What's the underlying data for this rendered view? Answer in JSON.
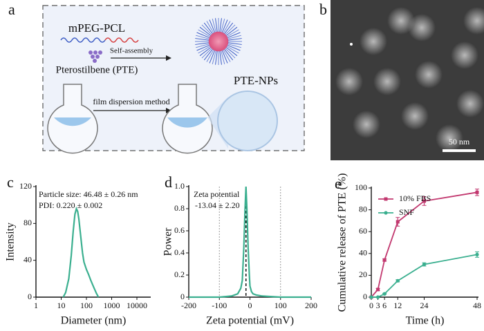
{
  "schematic": {
    "panel_label": "a",
    "polymer": "mPEG-PCL",
    "process": "Self-assembly",
    "drug": "Pterostilbene (PTE)",
    "method": "film dispersion method",
    "product": "PTE-NPs"
  },
  "image": {
    "panel_label": "b",
    "scale_bar": "50 nm"
  },
  "chart_data": [
    {
      "type": "line",
      "panel_label": "c",
      "xlabel": "Diameter (nm)",
      "ylabel": "Intensity",
      "annotations": [
        "Particle size: 46.48 ± 0.26 nm",
        "PDI: 0.220 ± 0.002"
      ],
      "xlog": true,
      "x": [
        12,
        15,
        20,
        25,
        30,
        35,
        40,
        45,
        50,
        60,
        70,
        80,
        100,
        120,
        150,
        200,
        250,
        300
      ],
      "values": [
        0,
        5,
        20,
        45,
        72,
        90,
        96,
        93,
        85,
        65,
        48,
        38,
        30,
        25,
        18,
        10,
        4,
        0
      ],
      "color": "#3aaf8f",
      "xlim": [
        1,
        10000
      ],
      "xticks": [
        1,
        10,
        100,
        1000,
        10000
      ],
      "ylim": [
        0,
        120
      ],
      "yticks": [
        0,
        40,
        80,
        120
      ]
    },
    {
      "type": "line",
      "panel_label": "d",
      "xlabel": "Zeta potential (mV)",
      "ylabel": "Power",
      "annotations": [
        "Zeta potential",
        "-13.04 ± 2.20"
      ],
      "x": [
        -200,
        -100,
        -60,
        -40,
        -30,
        -25,
        -20,
        -16,
        -13,
        -10,
        -6,
        -2,
        0,
        5,
        10,
        20,
        40,
        100,
        200
      ],
      "values": [
        0,
        0,
        0.01,
        0.03,
        0.08,
        0.15,
        0.45,
        0.8,
        1.0,
        0.8,
        0.45,
        0.2,
        0.1,
        0.05,
        0.03,
        0.02,
        0.01,
        0,
        0
      ],
      "color": "#3aaf8f",
      "reference_lines": [
        -100,
        100
      ],
      "marker_line": -13.04,
      "xlim": [
        -200,
        200
      ],
      "xticks": [
        -200,
        -100,
        0,
        100,
        200
      ],
      "ylim": [
        0,
        1
      ],
      "yticks": [
        0,
        0.2,
        0.4,
        0.6,
        0.8,
        {
          "value": 1,
          "label": "1.0"
        }
      ]
    },
    {
      "type": "line",
      "panel_label": "e",
      "xlabel": "Time (h)",
      "ylabel": "Cumulative release of PTE (%)",
      "x": [
        0,
        3,
        6,
        12,
        24,
        48
      ],
      "series": [
        {
          "name": "10% FBS",
          "color": "#c2386f",
          "marker": "square",
          "values": [
            0,
            7,
            34,
            69,
            88,
            96
          ],
          "errors": [
            0,
            1,
            1,
            4,
            4,
            3
          ]
        },
        {
          "name": "SNF",
          "color": "#3aaf8f",
          "marker": "circle",
          "values": [
            0,
            0,
            3,
            15,
            30,
            39
          ],
          "errors": [
            0,
            0,
            0.5,
            1,
            1.5,
            2.5
          ]
        }
      ],
      "legend": "upper-left",
      "xlim": [
        0,
        48
      ],
      "xticks": [
        0,
        3,
        6,
        12,
        24,
        48
      ],
      "ylim": [
        0,
        100
      ],
      "yticks": [
        0,
        20,
        40,
        60,
        80,
        100
      ]
    }
  ]
}
